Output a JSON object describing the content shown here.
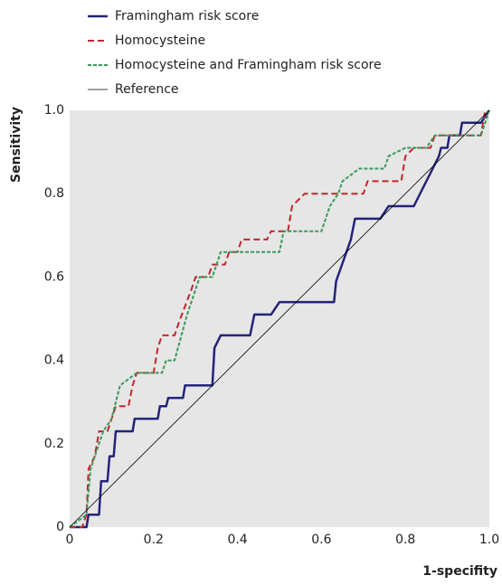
{
  "chart_data": {
    "type": "line",
    "x_label": "1-specifity",
    "y_label": "Sensitivity",
    "xlim": [
      0,
      1
    ],
    "ylim": [
      0,
      1
    ],
    "xticks": [
      0,
      0.2,
      0.4,
      0.6,
      0.8,
      {
        "value": 1,
        "label": "1.0"
      }
    ],
    "yticks": [
      0,
      0.2,
      0.4,
      0.6,
      0.8,
      {
        "value": 1,
        "label": "1.0"
      }
    ],
    "grid": false,
    "legend": "top-left",
    "series": [
      {
        "name": "Framingham risk score",
        "color": "#23237b",
        "linestyle": "solid",
        "x": [
          0,
          0.04,
          0.045,
          0.07,
          0.075,
          0.09,
          0.095,
          0.105,
          0.11,
          0.15,
          0.155,
          0.21,
          0.215,
          0.23,
          0.235,
          0.27,
          0.275,
          0.34,
          0.345,
          0.36,
          0.43,
          0.44,
          0.48,
          0.5,
          0.63,
          0.635,
          0.67,
          0.68,
          0.74,
          0.76,
          0.82,
          0.88,
          0.885,
          0.9,
          0.905,
          0.93,
          0.935,
          0.98,
          1
        ],
        "values": [
          0,
          0,
          0.03,
          0.03,
          0.11,
          0.11,
          0.17,
          0.17,
          0.23,
          0.23,
          0.26,
          0.26,
          0.29,
          0.29,
          0.31,
          0.31,
          0.34,
          0.34,
          0.43,
          0.46,
          0.46,
          0.51,
          0.51,
          0.54,
          0.54,
          0.59,
          0.69,
          0.74,
          0.74,
          0.77,
          0.77,
          0.89,
          0.91,
          0.91,
          0.94,
          0.94,
          0.97,
          0.97,
          1
        ]
      },
      {
        "name": "Homocysteine",
        "color": "#c0262d",
        "linestyle": "dashed",
        "x": [
          0,
          0.03,
          0.04,
          0.045,
          0.06,
          0.07,
          0.09,
          0.1,
          0.11,
          0.14,
          0.15,
          0.16,
          0.2,
          0.21,
          0.22,
          0.25,
          0.26,
          0.29,
          0.3,
          0.33,
          0.34,
          0.37,
          0.38,
          0.4,
          0.41,
          0.47,
          0.48,
          0.52,
          0.53,
          0.56,
          0.7,
          0.71,
          0.79,
          0.8,
          0.82,
          0.86,
          0.87,
          0.98,
          0.99
        ],
        "values": [
          0,
          0,
          0.03,
          0.14,
          0.17,
          0.23,
          0.23,
          0.26,
          0.29,
          0.29,
          0.34,
          0.37,
          0.37,
          0.43,
          0.46,
          0.46,
          0.49,
          0.57,
          0.6,
          0.6,
          0.63,
          0.63,
          0.66,
          0.66,
          0.69,
          0.69,
          0.71,
          0.71,
          0.77,
          0.8,
          0.8,
          0.83,
          0.83,
          0.89,
          0.91,
          0.91,
          0.94,
          0.94,
          1
        ]
      },
      {
        "name": "Homocysteine and Framingham risk score",
        "color": "#3a9a5a",
        "linestyle": "dotted",
        "x": [
          0,
          0.04,
          0.05,
          0.07,
          0.08,
          0.1,
          0.12,
          0.16,
          0.22,
          0.23,
          0.25,
          0.28,
          0.3,
          0.31,
          0.34,
          0.35,
          0.36,
          0.5,
          0.51,
          0.6,
          0.62,
          0.64,
          0.65,
          0.69,
          0.75,
          0.76,
          0.8,
          0.85,
          0.87,
          0.98,
          1
        ],
        "values": [
          0,
          0.03,
          0.14,
          0.2,
          0.23,
          0.26,
          0.34,
          0.37,
          0.37,
          0.4,
          0.4,
          0.51,
          0.57,
          0.6,
          0.6,
          0.63,
          0.66,
          0.66,
          0.71,
          0.71,
          0.77,
          0.8,
          0.83,
          0.86,
          0.86,
          0.89,
          0.91,
          0.91,
          0.94,
          0.94,
          1
        ]
      },
      {
        "name": "Reference",
        "color": "#000000",
        "linestyle": "thin",
        "x": [
          0,
          1
        ],
        "values": [
          0,
          1
        ]
      }
    ]
  }
}
